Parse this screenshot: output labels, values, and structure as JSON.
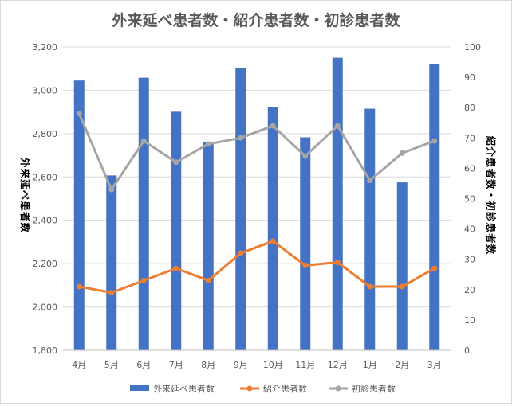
{
  "chart_data": {
    "type": "bar",
    "title": "外来延べ患者数・紹介患者数・初診患者数",
    "categories": [
      "4月",
      "5月",
      "6月",
      "7月",
      "8月",
      "9月",
      "10月",
      "11月",
      "12月",
      "1月",
      "2月",
      "3月"
    ],
    "series": [
      {
        "name": "外来延べ患者数",
        "type": "bar",
        "axis": "left",
        "color": "#4472c4",
        "values": [
          3045,
          2607,
          3058,
          2901,
          2762,
          3103,
          2923,
          2783,
          3150,
          2915,
          2575,
          3120
        ]
      },
      {
        "name": "紹介患者数",
        "type": "line",
        "axis": "right",
        "color": "#ed7d31",
        "values": [
          21,
          19,
          23,
          27,
          23,
          32,
          36,
          28,
          29,
          21,
          21,
          27
        ]
      },
      {
        "name": "初診患者数",
        "type": "line",
        "axis": "right",
        "color": "#a5a5a5",
        "values": [
          78,
          53,
          69,
          62,
          68,
          70,
          74,
          64,
          74,
          56,
          65,
          69
        ]
      }
    ],
    "y_left": {
      "label": "外来延べ患者数",
      "min": 1800,
      "max": 3200,
      "step": 200,
      "ticks": [
        "1,800",
        "2,000",
        "2,200",
        "2,400",
        "2,600",
        "2,800",
        "3,000",
        "3,200"
      ]
    },
    "y_right": {
      "label": "紹介患者数・初診患者数",
      "min": 0,
      "max": 100,
      "step": 10,
      "ticks": [
        "0",
        "10",
        "20",
        "30",
        "40",
        "50",
        "60",
        "70",
        "80",
        "90",
        "100"
      ]
    },
    "grid": true,
    "legend_position": "bottom"
  }
}
